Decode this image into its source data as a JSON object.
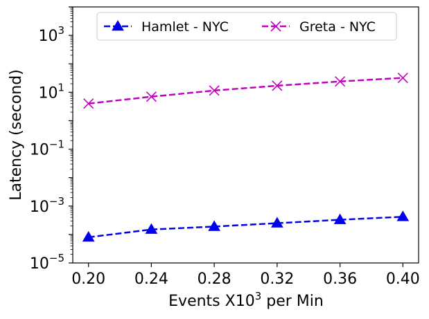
{
  "chart_data": {
    "type": "line",
    "xlabel_prefix": "Events X10",
    "xlabel_sup": "3",
    "xlabel_suffix": " per Min",
    "ylabel": "Latency (second)",
    "x": [
      0.2,
      0.24,
      0.28,
      0.32,
      0.36,
      0.4
    ],
    "x_tick_labels": [
      "0.20",
      "0.24",
      "0.28",
      "0.32",
      "0.36",
      "0.40"
    ],
    "y_scale": "log",
    "ylim": [
      1e-05,
      10000
    ],
    "y_ticks": [
      {
        "base": "10",
        "exp": "−5",
        "value": 1e-05
      },
      {
        "base": "10",
        "exp": "−3",
        "value": 0.001
      },
      {
        "base": "10",
        "exp": "−1",
        "value": 0.1
      },
      {
        "base": "10",
        "exp": "1",
        "value": 10
      },
      {
        "base": "10",
        "exp": "3",
        "value": 1000
      }
    ],
    "grid": false,
    "legend_position": "top",
    "series": [
      {
        "name": "Hamlet - NYC",
        "color": "#0000ee",
        "marker": "triangle",
        "linestyle": "dashed",
        "values": [
          8e-05,
          0.00015,
          0.00019,
          0.00025,
          0.00033,
          0.00042
        ]
      },
      {
        "name": "Greta - NYC",
        "color": "#c000c0",
        "marker": "x",
        "linestyle": "dashed",
        "values": [
          4.0,
          7.0,
          11.5,
          17.0,
          24.0,
          32.0
        ]
      }
    ]
  }
}
